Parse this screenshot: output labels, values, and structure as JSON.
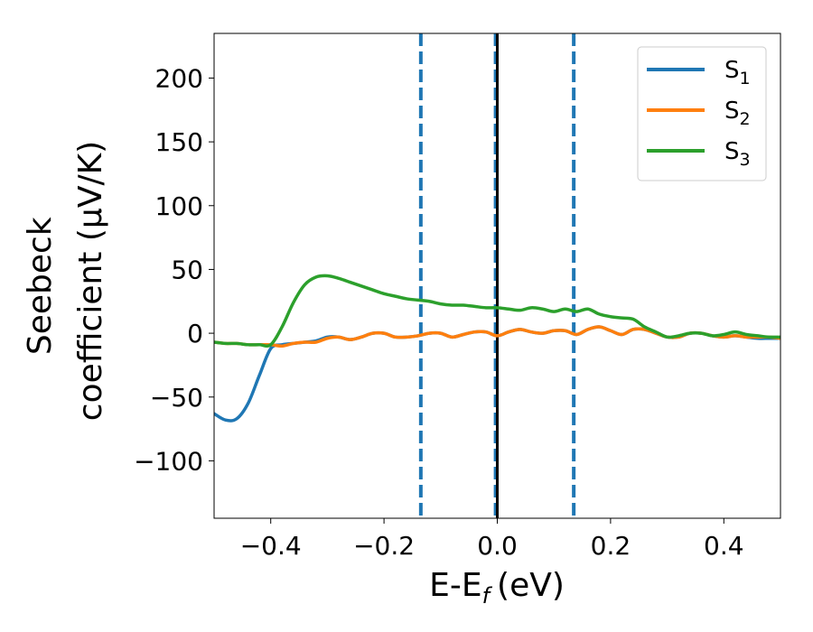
{
  "chart_data": {
    "type": "line",
    "xlabel": "E-E",
    "xlabel_sub": "f",
    "xlabel_unit": "(eV)",
    "ylabel_line1": "Seebeck",
    "ylabel_line2": "coefficient  (μV/K)",
    "xlim": [
      -0.5,
      0.5
    ],
    "ylim": [
      -145,
      235
    ],
    "xticks": [
      -0.4,
      -0.2,
      0.0,
      0.2,
      0.4
    ],
    "xtick_labels": [
      "−0.4",
      "−0.2",
      "0.0",
      "0.2",
      "0.4"
    ],
    "yticks": [
      -100,
      -50,
      0,
      50,
      100,
      150,
      200
    ],
    "ytick_labels": [
      "−100",
      "−50",
      "0",
      "50",
      "100",
      "150",
      "200"
    ],
    "grid": false,
    "legend_position": "top-right",
    "vlines": [
      {
        "x": -0.135,
        "style": "dashed",
        "color": "#1f77b4"
      },
      {
        "x": -0.003,
        "style": "dashed",
        "color": "#1f77b4"
      },
      {
        "x": 0.135,
        "style": "dashed",
        "color": "#1f77b4"
      },
      {
        "x": 0.0,
        "style": "solid",
        "color": "#000000"
      }
    ],
    "series": [
      {
        "name": "S",
        "sub": "1",
        "color": "#1f77b4",
        "x": [
          -0.5,
          -0.48,
          -0.46,
          -0.44,
          -0.42,
          -0.4,
          -0.38,
          -0.36,
          -0.34,
          -0.32,
          -0.3,
          -0.28,
          -0.26,
          -0.24,
          -0.22,
          -0.2,
          -0.18,
          -0.16,
          -0.14,
          -0.12,
          -0.1,
          -0.08,
          -0.06,
          -0.04,
          -0.02,
          0.0,
          0.02,
          0.04,
          0.06,
          0.08,
          0.1,
          0.12,
          0.14,
          0.16,
          0.18,
          0.2,
          0.22,
          0.24,
          0.26,
          0.28,
          0.3,
          0.32,
          0.34,
          0.36,
          0.38,
          0.4,
          0.42,
          0.44,
          0.46,
          0.48,
          0.5
        ],
        "y": [
          -63,
          -68,
          -67,
          -55,
          -33,
          -12,
          -9,
          -8,
          -7,
          -6,
          -3,
          -3,
          -5,
          -3,
          0,
          0,
          -3,
          -3,
          -2,
          0,
          0,
          -3,
          -1,
          1,
          1,
          -2,
          1,
          3,
          1,
          0,
          2,
          2,
          -1,
          3,
          5,
          2,
          -1,
          3,
          3,
          0,
          -3,
          -3,
          0,
          0,
          -2,
          -3,
          -2,
          -3,
          -4,
          -4,
          -4
        ]
      },
      {
        "name": "S",
        "sub": "2",
        "color": "#ff7f0e",
        "x": [
          -0.5,
          -0.48,
          -0.46,
          -0.44,
          -0.42,
          -0.4,
          -0.38,
          -0.36,
          -0.34,
          -0.32,
          -0.3,
          -0.28,
          -0.26,
          -0.24,
          -0.22,
          -0.2,
          -0.18,
          -0.16,
          -0.14,
          -0.12,
          -0.1,
          -0.08,
          -0.06,
          -0.04,
          -0.02,
          0.0,
          0.02,
          0.04,
          0.06,
          0.08,
          0.1,
          0.12,
          0.14,
          0.16,
          0.18,
          0.2,
          0.22,
          0.24,
          0.26,
          0.28,
          0.3,
          0.32,
          0.34,
          0.36,
          0.38,
          0.4,
          0.42,
          0.44,
          0.46,
          0.48,
          0.5
        ],
        "y": [
          -7,
          -8,
          -8,
          -9,
          -9,
          -9,
          -10,
          -8,
          -7,
          -7,
          -4,
          -3,
          -5,
          -3,
          0,
          0,
          -3,
          -3,
          -2,
          0,
          0,
          -3,
          -1,
          1,
          1,
          -2,
          1,
          3,
          1,
          0,
          2,
          2,
          -1,
          3,
          5,
          2,
          -1,
          3,
          3,
          0,
          -3,
          -3,
          0,
          0,
          -2,
          -3,
          -2,
          -3,
          -3,
          -3,
          -4
        ]
      },
      {
        "name": "S",
        "sub": "3",
        "color": "#2ca02c",
        "x": [
          -0.5,
          -0.48,
          -0.46,
          -0.44,
          -0.42,
          -0.4,
          -0.38,
          -0.36,
          -0.34,
          -0.32,
          -0.3,
          -0.28,
          -0.26,
          -0.24,
          -0.22,
          -0.2,
          -0.18,
          -0.16,
          -0.14,
          -0.12,
          -0.1,
          -0.08,
          -0.06,
          -0.04,
          -0.02,
          0.0,
          0.02,
          0.04,
          0.06,
          0.08,
          0.1,
          0.12,
          0.14,
          0.16,
          0.18,
          0.2,
          0.22,
          0.24,
          0.26,
          0.28,
          0.3,
          0.32,
          0.34,
          0.36,
          0.38,
          0.4,
          0.42,
          0.44,
          0.46,
          0.48,
          0.5
        ],
        "y": [
          -7,
          -8,
          -8,
          -9,
          -9,
          -9,
          5,
          24,
          38,
          44,
          45,
          43,
          40,
          37,
          34,
          31,
          29,
          27,
          26,
          25,
          23,
          22,
          22,
          21,
          20,
          20,
          19,
          18,
          20,
          19,
          17,
          19,
          17,
          19,
          15,
          13,
          12,
          11,
          5,
          1,
          -3,
          -2,
          0,
          0,
          -2,
          -1,
          1,
          -1,
          -2,
          -3,
          -3
        ]
      }
    ]
  }
}
